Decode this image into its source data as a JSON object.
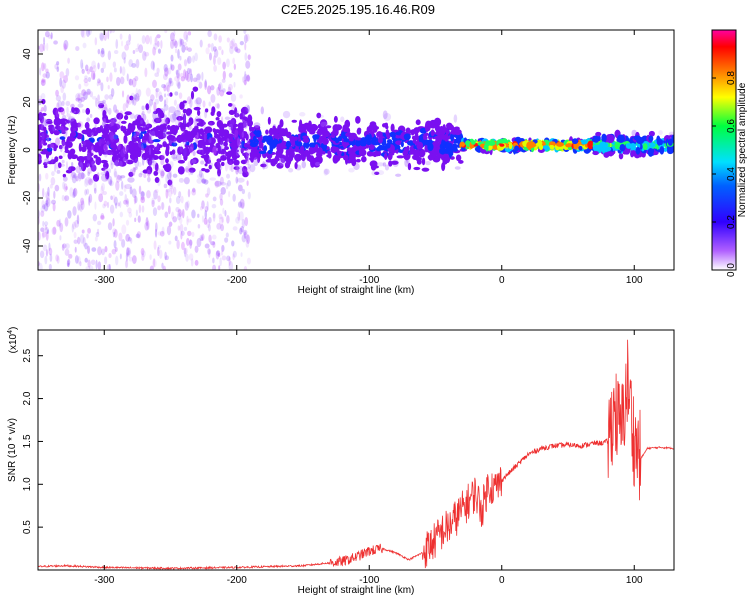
{
  "title": "C2E5.2025.195.16.46.R09",
  "chart_data": [
    {
      "type": "heatmap",
      "xlabel": "Height of straight line (km)",
      "ylabel": "Frequency (Hz)",
      "xlim": [
        -350,
        130
      ],
      "ylim": [
        -50,
        50
      ],
      "xticks": [
        -300,
        -200,
        -100,
        0,
        100
      ],
      "yticks": [
        -40,
        -20,
        0,
        20,
        40
      ],
      "colorbar": {
        "label": "Normalized spectral amplitude",
        "range": [
          0.0,
          1.0
        ],
        "ticks": [
          "0.0",
          "0.2",
          "0.4",
          "0.6",
          "0.8"
        ],
        "colors": [
          "#ffffff",
          "#8000ff",
          "#0000ff",
          "#00ffff",
          "#00ff00",
          "#ffff00",
          "#ff8000",
          "#ff0000",
          "#ff00ff"
        ]
      },
      "features": [
        {
          "x_range": [
            -350,
            -190
          ],
          "freq_center": 4,
          "freq_spread": 8,
          "amplitude": 0.25
        },
        {
          "x_range": [
            -190,
            -30
          ],
          "freq_center": 3,
          "freq_spread": 5,
          "amplitude": 0.35
        },
        {
          "x_range": [
            -30,
            70
          ],
          "freq_center": 2,
          "freq_spread": 1,
          "amplitude": 0.9
        },
        {
          "x_range": [
            70,
            130
          ],
          "freq_center": 2,
          "freq_spread": 2,
          "amplitude": 0.6
        }
      ]
    },
    {
      "type": "line",
      "xlabel": "Height of straight line (km)",
      "ylabel": "SNR (10 * v/v)",
      "y_multiplier": "(x10",
      "y_multiplier_exp": "4",
      "y_multiplier_close": ")",
      "xlim": [
        -350,
        130
      ],
      "ylim": [
        0,
        2.8
      ],
      "xticks": [
        -300,
        -200,
        -100,
        0,
        100
      ],
      "yticks": [
        0.5,
        1.0,
        1.5,
        2.0,
        2.5
      ],
      "ytick_labels": [
        "0.5",
        "1.0",
        "1.5",
        "2.0",
        "2.5"
      ],
      "color": "#ee3030",
      "series": [
        {
          "x": [
            -350,
            -330,
            -300,
            -250,
            -200,
            -150,
            -120,
            -110,
            -100,
            -90,
            -80,
            -70,
            -60,
            -50,
            -45,
            -40,
            -35,
            -30,
            -25,
            -20,
            -15,
            -10,
            -5,
            0,
            10,
            20,
            30,
            40,
            50,
            60,
            70,
            75,
            80,
            85,
            90,
            95,
            100,
            105,
            110,
            120,
            130
          ],
          "y": [
            0.04,
            0.05,
            0.03,
            0.02,
            0.03,
            0.05,
            0.1,
            0.15,
            0.22,
            0.25,
            0.2,
            0.12,
            0.2,
            0.35,
            0.45,
            0.5,
            0.6,
            0.7,
            0.8,
            0.9,
            0.7,
            1.0,
            0.95,
            1.05,
            1.2,
            1.35,
            1.42,
            1.45,
            1.46,
            1.45,
            1.48,
            1.48,
            1.5,
            1.9,
            1.6,
            2.2,
            1.5,
            1.3,
            1.42,
            1.43,
            1.42
          ]
        }
      ]
    }
  ]
}
